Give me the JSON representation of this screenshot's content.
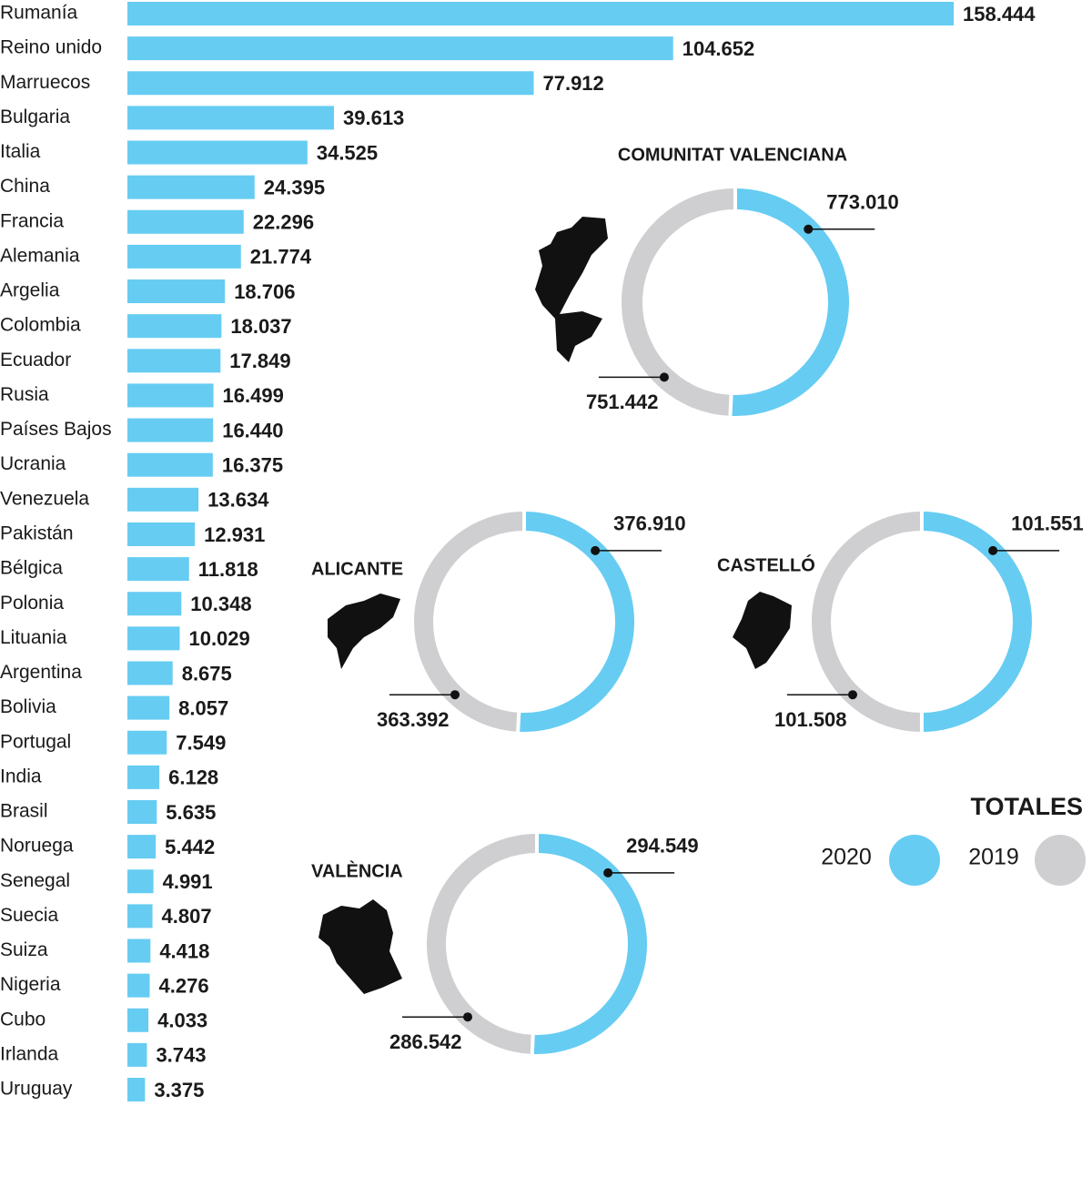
{
  "chart_data": [
    {
      "type": "bar",
      "color": "#66ccf2",
      "categories": [
        "Rumanía",
        "Reino unido",
        "Marruecos",
        "Bulgaria",
        "Italia",
        "China",
        "Francia",
        "Alemania",
        "Argelia",
        "Colombia",
        "Ecuador",
        "Rusia",
        "Países Bajos",
        "Ucrania",
        "Venezuela",
        "Pakistán",
        "Bélgica",
        "Polonia",
        "Lituania",
        "Argentina",
        "Bolivia",
        "Portugal",
        "India",
        "Brasil",
        "Noruega",
        "Senegal",
        "Suecia",
        "Suiza",
        "Nigeria",
        "Cubo",
        "Irlanda",
        "Uruguay"
      ],
      "values": [
        158444,
        104652,
        77912,
        39613,
        34525,
        24395,
        22296,
        21774,
        18706,
        18037,
        17849,
        16499,
        16440,
        16375,
        13634,
        12931,
        11818,
        10348,
        10029,
        8675,
        8057,
        7549,
        6128,
        5635,
        5442,
        4991,
        4807,
        4418,
        4276,
        4033,
        3743,
        3375
      ],
      "value_labels": [
        "158.444",
        "104.652",
        "77.912",
        "39.613",
        "34.525",
        "24.395",
        "22.296",
        "21.774",
        "18.706",
        "18.037",
        "17.849",
        "16.499",
        "16.440",
        "16.375",
        "13.634",
        "12.931",
        "11.818",
        "10.348",
        "10.029",
        "8.675",
        "8.057",
        "7.549",
        "6.128",
        "5.635",
        "5.442",
        "4.991",
        "4.807",
        "4.418",
        "4.276",
        "4.033",
        "3.743",
        "3.375"
      ]
    },
    {
      "type": "donut",
      "title": "COMUNITAT VALENCIANA",
      "values": [
        773010,
        751442
      ],
      "value_labels": [
        "773.010",
        "751.442"
      ]
    },
    {
      "type": "donut",
      "title": "ALICANTE",
      "values": [
        376910,
        363392
      ],
      "value_labels": [
        "376.910",
        "363.392"
      ]
    },
    {
      "type": "donut",
      "title": "CASTELLÓ",
      "values": [
        101551,
        101508
      ],
      "value_labels": [
        "101.551",
        "101.508"
      ]
    },
    {
      "type": "donut",
      "title": "VALÈNCIA",
      "values": [
        294549,
        286542
      ],
      "value_labels": [
        "294.549",
        "286.542"
      ]
    }
  ],
  "legend": {
    "title": "TOTALES",
    "entries": [
      "2020",
      "2019"
    ],
    "colors": [
      "#66ccf2",
      "#cfcfd1"
    ]
  }
}
